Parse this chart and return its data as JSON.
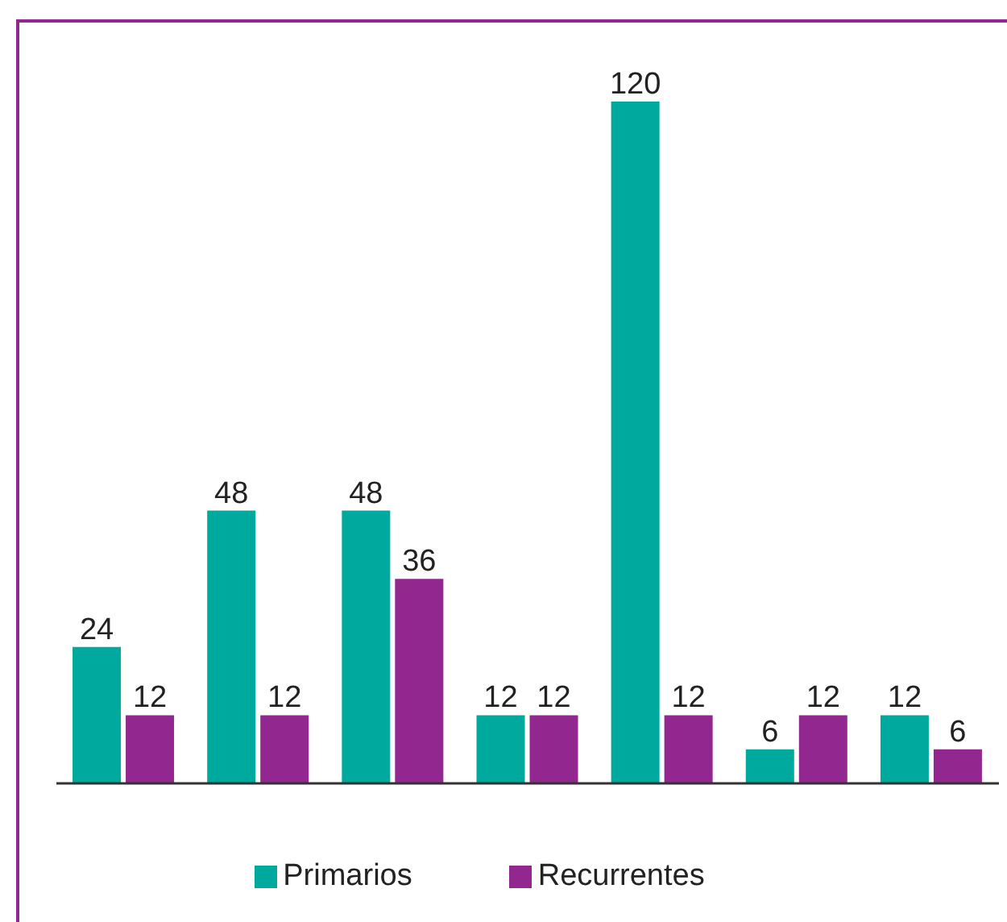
{
  "chart_data": {
    "type": "bar",
    "categories": [
      null,
      null,
      null,
      null,
      null,
      null,
      null
    ],
    "series": [
      {
        "name": "Primarios",
        "color": "#00a99d",
        "values": [
          24,
          48,
          48,
          12,
          120,
          6,
          12
        ]
      },
      {
        "name": "Recurrentes",
        "color": "#92278f",
        "values": [
          12,
          12,
          36,
          12,
          12,
          12,
          6
        ]
      }
    ],
    "data_labels": true,
    "legend": "bottom",
    "grid": false
  }
}
